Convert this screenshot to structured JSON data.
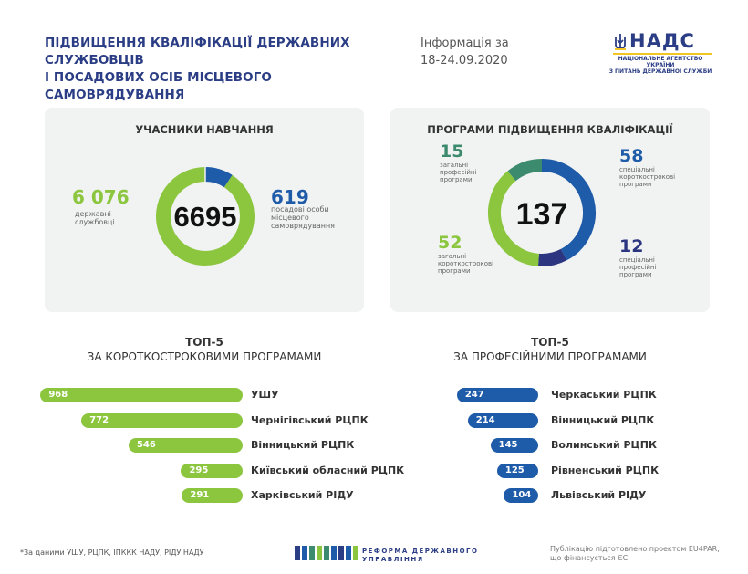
{
  "header": {
    "title_line1": "ПІДВИЩЕННЯ КВАЛІФІКАЦІЇ ДЕРЖАВНИХ СЛУЖБОВЦІВ",
    "title_line2": "І ПОСАДОВИХ ОСІБ МІСЦЕВОГО САМОВРЯДУВАННЯ",
    "info_label": "Інформація за",
    "info_dates": "18-24.09.2020",
    "logo_abbr": "НАДС",
    "logo_sub1": "НАЦІОНАЛЬНЕ АГЕНТСТВО УКРАЇНИ",
    "logo_sub2": "З ПИТАНЬ ДЕРЖАВНОЇ СЛУЖБИ"
  },
  "colors": {
    "navy": "#2b3d84",
    "green": "#8cc63f",
    "blue": "#1e5ba8",
    "teal": "#3d8b6e",
    "dark_navy": "#2b3580",
    "card_bg": "#f1f2f2"
  },
  "participants": {
    "title": "УЧАСНИКИ НАВЧАННЯ",
    "total": "6695",
    "left_value": "6 076",
    "left_label1": "державні",
    "left_label2": "службовці",
    "right_value": "619",
    "right_label1": "посадові особи",
    "right_label2": "місцевого",
    "right_label3": "самоврядування"
  },
  "programs": {
    "title": "ПРОГРАМИ ПІДВИЩЕННЯ КВАЛІФІКАЦІЇ",
    "total": "137",
    "tl_value": "15",
    "tl_label1": "загальні",
    "tl_label2": "професійні",
    "tl_label3": "програми",
    "tr_value": "58",
    "tr_label1": "спеціальні",
    "tr_label2": "короткострокові",
    "tr_label3": "програми",
    "bl_value": "52",
    "bl_label1": "загальні",
    "bl_label2": "короткострокові",
    "bl_label3": "програми",
    "br_value": "12",
    "br_label1": "спеціальні",
    "br_label2": "професійні",
    "br_label3": "програми"
  },
  "top_short": {
    "title1": "ТОП-5",
    "title2": "ЗА КОРОТКОСТРОКОВИМИ ПРОГРАМАМИ"
  },
  "top_prof": {
    "title1": "ТОП-5",
    "title2": "ЗА ПРОФЕСІЙНИМИ ПРОГРАМАМИ"
  },
  "footer": {
    "note": "*За даними УШУ, РЦПК, ІПККК НАДУ, РІДУ НАДУ",
    "reform1": "РЕФОРМА ДЕРЖАВНОГО",
    "reform2": "УПРАВЛІННЯ",
    "eu1": "Публікацію підготовлено проектом EU4PAR,",
    "eu2": "що фінансується ЄС"
  },
  "chart_data": [
    {
      "type": "pie",
      "title": "УЧАСНИКИ НАВЧАННЯ",
      "categories": [
        "державні службовці",
        "посадові особи місцевого самоврядування"
      ],
      "values": [
        6076,
        619
      ],
      "total": 6695
    },
    {
      "type": "pie",
      "title": "ПРОГРАМИ ПІДВИЩЕННЯ КВАЛІФІКАЦІЇ",
      "categories": [
        "спеціальні короткострокові програми",
        "спеціальні професійні програми",
        "загальні короткострокові програми",
        "загальні професійні програми"
      ],
      "values": [
        58,
        12,
        52,
        15
      ],
      "total": 137
    },
    {
      "type": "bar",
      "title": "ТОП-5 ЗА КОРОТКОСТРОКОВИМИ ПРОГРАМАМИ",
      "categories": [
        "УШУ",
        "Чернігівський РЦПК",
        "Вінницький РЦПК",
        "Київський обласний РЦПК",
        "Харківський РІДУ"
      ],
      "values": [
        968,
        772,
        546,
        295,
        291
      ]
    },
    {
      "type": "bar",
      "title": "ТОП-5 ЗА ПРОФЕСІЙНИМИ ПРОГРАМАМИ",
      "categories": [
        "Черкаський РЦПК",
        "Вінницький РЦПК",
        "Волинський РЦПК",
        "Рівненський РЦПК",
        "Львівський РІДУ"
      ],
      "values": [
        247,
        214,
        145,
        125,
        104
      ]
    }
  ]
}
